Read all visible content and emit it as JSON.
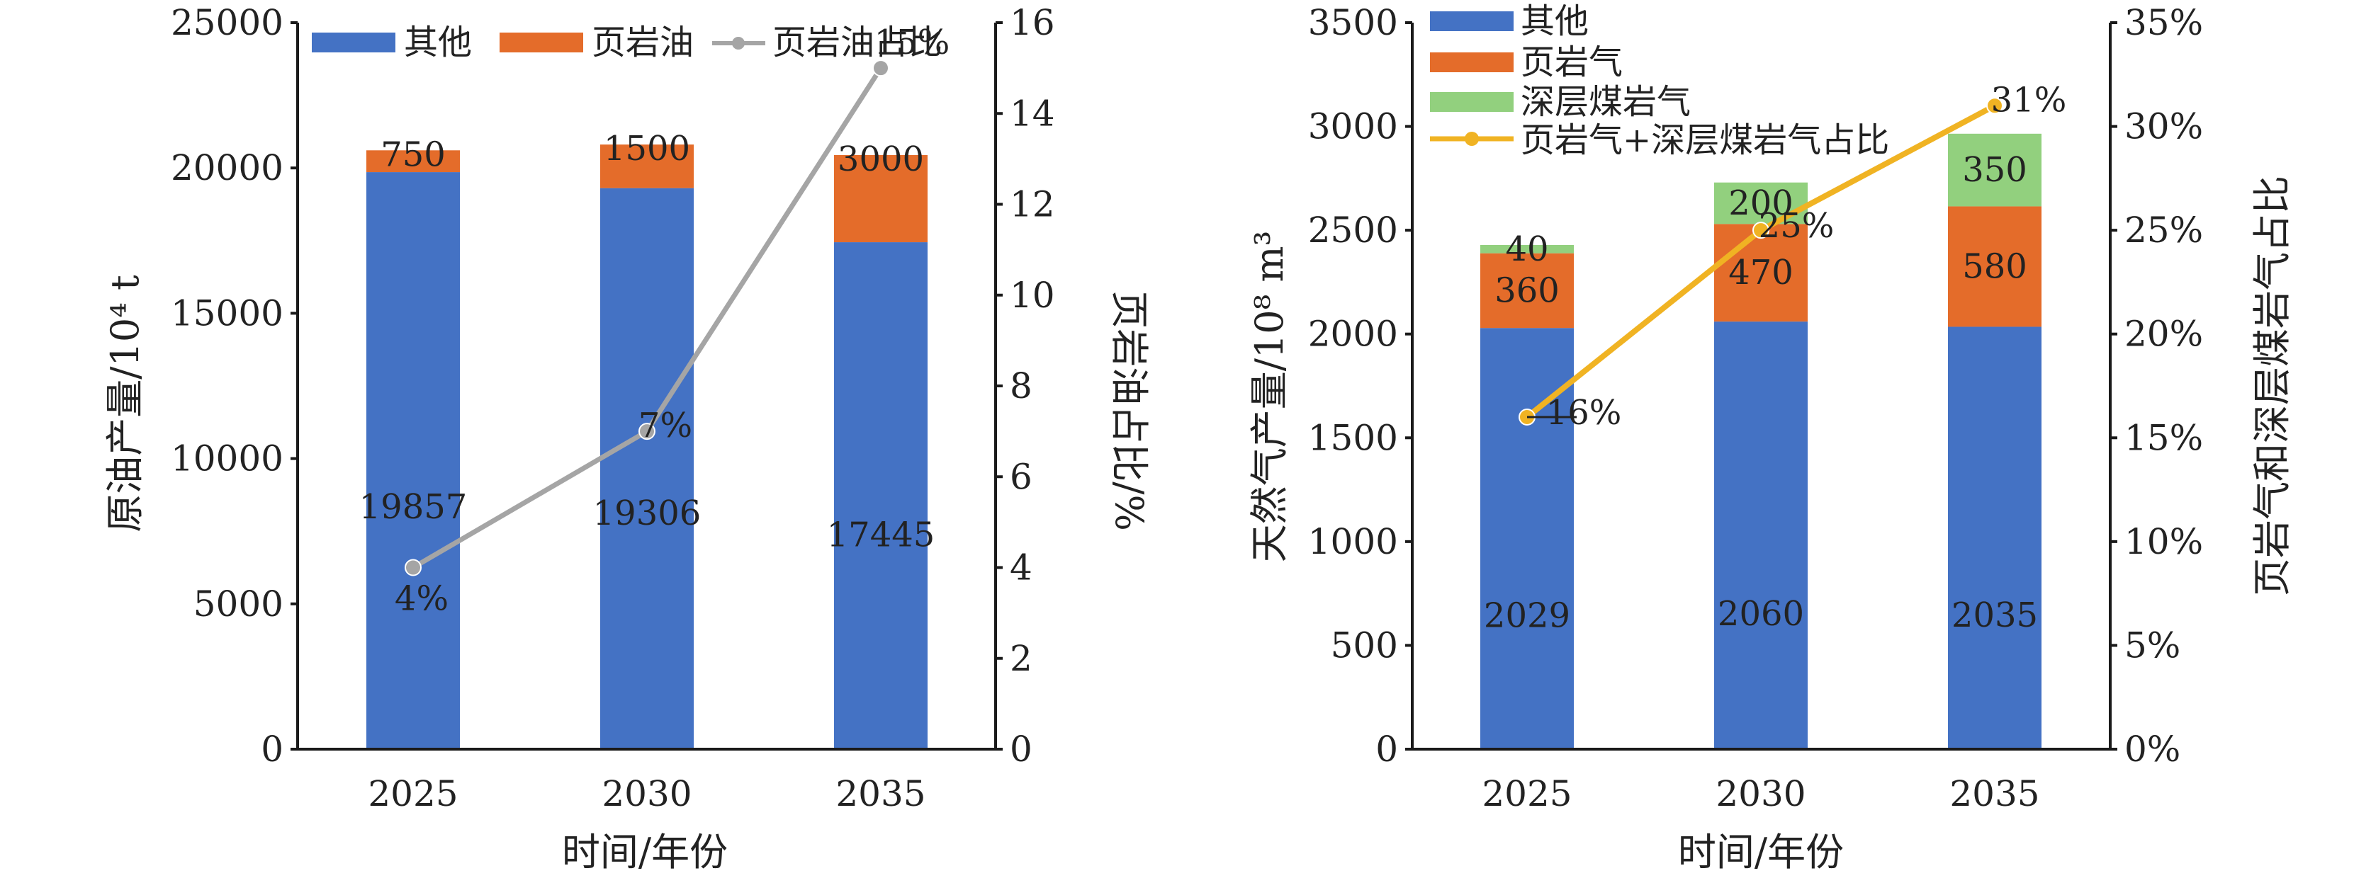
{
  "chart_data": [
    {
      "type": "bar",
      "stacked": true,
      "categories": [
        "2025",
        "2030",
        "2035"
      ],
      "series": [
        {
          "name": "其他",
          "values": [
            19857,
            19306,
            17445
          ],
          "color": "#4472C4",
          "axis": "left"
        },
        {
          "name": "页岩油",
          "values": [
            750,
            1500,
            3000
          ],
          "color": "#E46C2A",
          "axis": "left"
        }
      ],
      "line_series": {
        "name": "页岩油占比",
        "values": [
          4,
          7,
          15
        ],
        "labels": [
          "4%",
          "7%",
          "15%"
        ],
        "color": "#A5A5A5",
        "axis": "right"
      },
      "xlabel": "时间/年份",
      "ylabel": "原油产量/10⁴ t",
      "y2label": "页岩油占比/%",
      "ylim": [
        0,
        25000
      ],
      "y2lim": [
        0,
        16
      ],
      "yticks": [
        "0",
        "5000",
        "10000",
        "15000",
        "20000",
        "25000"
      ],
      "y2ticks": [
        "0",
        "2",
        "4",
        "6",
        "8",
        "10",
        "12",
        "14",
        "16"
      ],
      "legend_position": "top",
      "grid": false
    },
    {
      "type": "bar",
      "stacked": true,
      "categories": [
        "2025",
        "2030",
        "2035"
      ],
      "series": [
        {
          "name": "其他",
          "values": [
            2029,
            2060,
            2035
          ],
          "color": "#4472C4",
          "axis": "left"
        },
        {
          "name": "页岩气",
          "values": [
            360,
            470,
            580
          ],
          "color": "#E46C2A",
          "axis": "left"
        },
        {
          "name": "深层煤岩气",
          "values": [
            40,
            200,
            350
          ],
          "color": "#92D07E",
          "axis": "left"
        }
      ],
      "line_series": {
        "name": "页岩气+深层煤岩气占比",
        "values": [
          16,
          25,
          31
        ],
        "labels": [
          "16%",
          "25%",
          "31%"
        ],
        "color": "#F0B323",
        "axis": "right"
      },
      "xlabel": "时间/年份",
      "ylabel": "天然气产量/10⁸ m³",
      "y2label": "页岩气和深层煤岩气占比",
      "ylim": [
        0,
        3500
      ],
      "y2lim": [
        0,
        35
      ],
      "yticks": [
        "0",
        "500",
        "1000",
        "1500",
        "2000",
        "2500",
        "3000",
        "3500"
      ],
      "y2ticks": [
        "0%",
        "5%",
        "10%",
        "15%",
        "20%",
        "25%",
        "30%",
        "35%"
      ],
      "legend_position": "top-left",
      "grid": false
    }
  ]
}
